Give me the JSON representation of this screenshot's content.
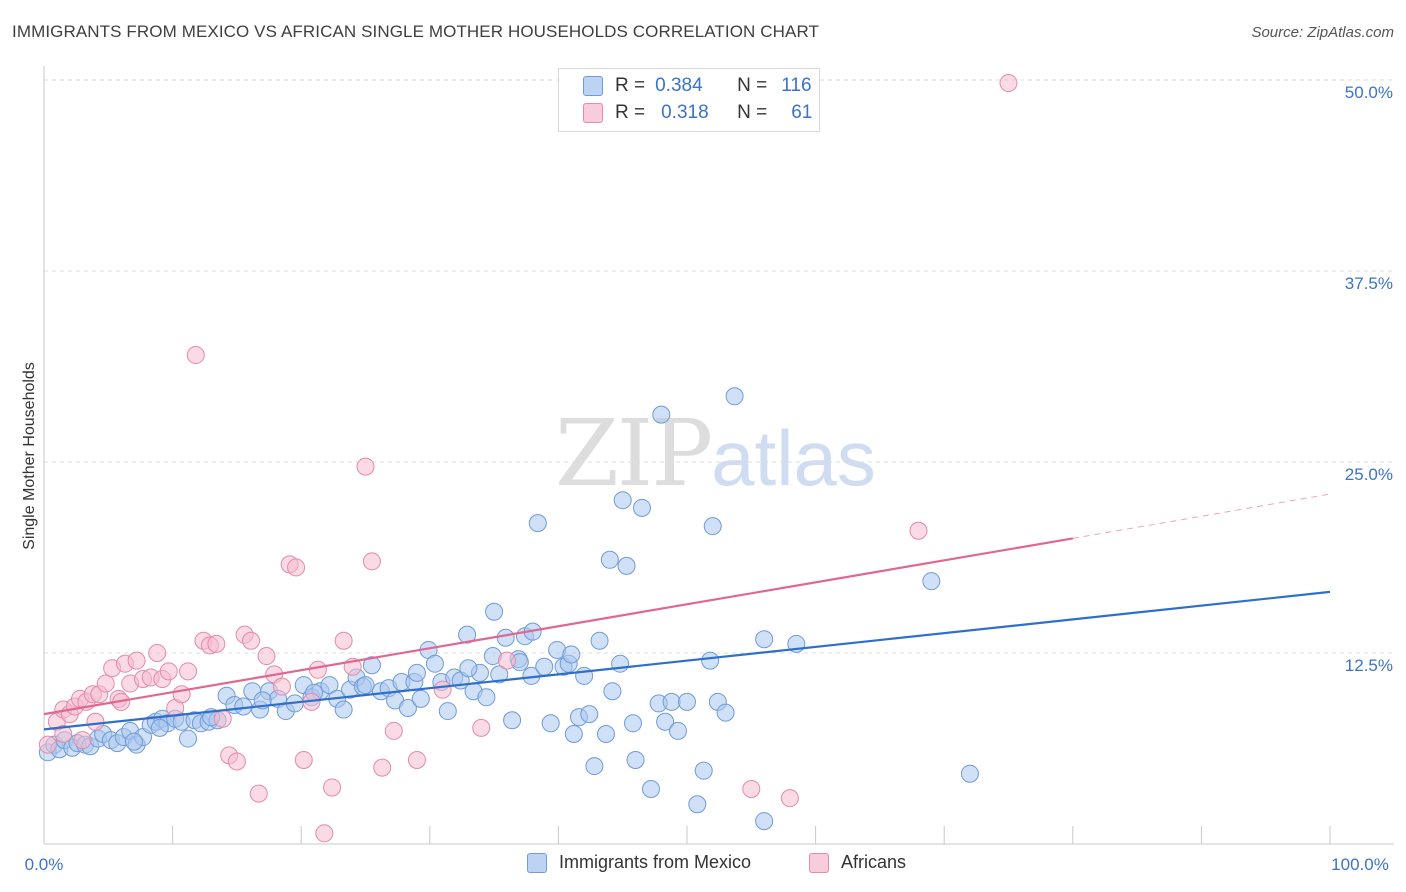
{
  "title": "IMMIGRANTS FROM MEXICO VS AFRICAN SINGLE MOTHER HOUSEHOLDS CORRELATION CHART",
  "source": "Source: ZipAtlas.com",
  "watermark": {
    "zip": "ZIP",
    "atlas": "atlas"
  },
  "legend_top": {
    "rows": [
      {
        "r_label": "R =",
        "r_value": "0.384",
        "n_label": "N =",
        "n_value": "116"
      },
      {
        "r_label": "R =",
        "r_value": "0.318",
        "n_label": "N =",
        "n_value": "61"
      }
    ]
  },
  "legend_bottom": [
    "Immigrants from Mexico",
    "Africans"
  ],
  "colors": {
    "mexico_fill": "#a9c6ef",
    "mexico_stroke": "#6f9bd8",
    "mexico_line": "#2f6fcc",
    "africans_fill": "#f6bccd",
    "africans_stroke": "#e58aa8",
    "africans_line": "#e06790",
    "tick_label": "#3b73c8",
    "grid": "#dddddd"
  },
  "chart_data": {
    "type": "scatter",
    "title": "IMMIGRANTS FROM MEXICO VS AFRICAN SINGLE MOTHER HOUSEHOLDS CORRELATION CHART",
    "xlabel": "",
    "ylabel": "Single Mother Households",
    "xlim": [
      0,
      100
    ],
    "ylim": [
      0,
      50
    ],
    "x_tick_labels": [
      "0.0%",
      "100.0%"
    ],
    "y_ticks": [
      12.5,
      25.0,
      37.5,
      50.0
    ],
    "y_tick_labels": [
      "12.5%",
      "25.0%",
      "37.5%",
      "50.0%"
    ],
    "grid": true,
    "legend_position": "top-center",
    "series": [
      {
        "name": "Immigrants from Mexico",
        "R": 0.384,
        "N": 116,
        "trend": {
          "x": [
            0,
            100
          ],
          "y": [
            7.5,
            16.5
          ]
        },
        "points": [
          [
            0.3,
            6.0
          ],
          [
            0.8,
            6.5
          ],
          [
            1.2,
            6.2
          ],
          [
            1.6,
            6.8
          ],
          [
            2.2,
            6.3
          ],
          [
            2.6,
            6.6
          ],
          [
            3.2,
            6.5
          ],
          [
            3.6,
            6.4
          ],
          [
            4.2,
            6.9
          ],
          [
            4.6,
            7.2
          ],
          [
            5.2,
            6.8
          ],
          [
            5.7,
            6.6
          ],
          [
            6.2,
            7.0
          ],
          [
            6.7,
            7.4
          ],
          [
            7.2,
            6.5
          ],
          [
            7.7,
            7.0
          ],
          [
            8.3,
            7.8
          ],
          [
            8.7,
            8.0
          ],
          [
            9.2,
            8.2
          ],
          [
            9.6,
            7.9
          ],
          [
            10.2,
            8.2
          ],
          [
            10.7,
            8.0
          ],
          [
            11.2,
            6.9
          ],
          [
            11.7,
            8.1
          ],
          [
            12.2,
            7.9
          ],
          [
            12.8,
            8.0
          ],
          [
            13.5,
            8.1
          ],
          [
            14.2,
            9.7
          ],
          [
            14.8,
            9.1
          ],
          [
            15.5,
            9.0
          ],
          [
            16.2,
            10.0
          ],
          [
            16.8,
            8.8
          ],
          [
            17.5,
            10.0
          ],
          [
            18.2,
            9.5
          ],
          [
            18.8,
            8.7
          ],
          [
            19.5,
            9.2
          ],
          [
            20.2,
            10.4
          ],
          [
            20.8,
            9.6
          ],
          [
            21.5,
            10.0
          ],
          [
            22.2,
            10.4
          ],
          [
            22.8,
            9.5
          ],
          [
            23.3,
            8.8
          ],
          [
            23.8,
            10.1
          ],
          [
            24.3,
            10.9
          ],
          [
            24.8,
            10.3
          ],
          [
            25.5,
            11.7
          ],
          [
            26.2,
            10.0
          ],
          [
            26.8,
            10.2
          ],
          [
            27.3,
            9.4
          ],
          [
            27.8,
            10.6
          ],
          [
            28.3,
            8.9
          ],
          [
            28.8,
            10.6
          ],
          [
            29.3,
            9.5
          ],
          [
            29.9,
            12.7
          ],
          [
            30.4,
            11.8
          ],
          [
            30.9,
            10.6
          ],
          [
            31.4,
            8.7
          ],
          [
            31.9,
            10.9
          ],
          [
            32.4,
            10.7
          ],
          [
            32.9,
            13.7
          ],
          [
            33.4,
            10.0
          ],
          [
            33.9,
            11.2
          ],
          [
            34.4,
            9.6
          ],
          [
            34.9,
            12.3
          ],
          [
            35.4,
            11.1
          ],
          [
            35.9,
            13.5
          ],
          [
            36.4,
            8.1
          ],
          [
            36.9,
            12.1
          ],
          [
            37.4,
            13.6
          ],
          [
            37.9,
            11.0
          ],
          [
            38.4,
            21.0
          ],
          [
            38.9,
            11.6
          ],
          [
            39.4,
            7.9
          ],
          [
            39.9,
            12.7
          ],
          [
            40.4,
            11.6
          ],
          [
            40.8,
            11.8
          ],
          [
            41.2,
            7.2
          ],
          [
            41.6,
            8.3
          ],
          [
            42.0,
            11.0
          ],
          [
            42.4,
            8.5
          ],
          [
            42.8,
            5.1
          ],
          [
            43.2,
            13.3
          ],
          [
            43.7,
            7.2
          ],
          [
            44.2,
            10.0
          ],
          [
            44.8,
            11.8
          ],
          [
            45.3,
            18.2
          ],
          [
            45.8,
            7.9
          ],
          [
            46.5,
            22.0
          ],
          [
            47.2,
            3.6
          ],
          [
            47.8,
            9.2
          ],
          [
            48.3,
            8.0
          ],
          [
            48.8,
            9.3
          ],
          [
            49.3,
            7.4
          ],
          [
            50.8,
            2.6
          ],
          [
            51.3,
            4.8
          ],
          [
            51.8,
            12.0
          ],
          [
            52.4,
            9.3
          ],
          [
            53.0,
            8.6
          ],
          [
            53.7,
            29.3
          ],
          [
            35.0,
            15.2
          ],
          [
            38.0,
            13.9
          ],
          [
            44.0,
            18.6
          ],
          [
            45.0,
            22.5
          ],
          [
            48.0,
            28.1
          ],
          [
            52.0,
            20.8
          ],
          [
            56.0,
            13.4
          ],
          [
            58.5,
            13.1
          ],
          [
            69.0,
            17.2
          ],
          [
            72.0,
            4.6
          ],
          [
            56.0,
            1.5
          ],
          [
            7.0,
            6.7
          ],
          [
            9.0,
            7.6
          ],
          [
            13.0,
            8.3
          ],
          [
            17.0,
            9.4
          ],
          [
            21.0,
            9.9
          ],
          [
            25.0,
            10.4
          ],
          [
            29.0,
            11.2
          ],
          [
            33.0,
            11.5
          ],
          [
            37.0,
            11.9
          ],
          [
            41.0,
            12.4
          ],
          [
            50.0,
            9.3
          ],
          [
            46.0,
            5.5
          ]
        ]
      },
      {
        "name": "Africans",
        "R": 0.318,
        "N": 61,
        "trend": {
          "x": [
            0,
            80
          ],
          "y": [
            8.5,
            20.0
          ]
        },
        "trend_dashed": {
          "x": [
            80,
            100
          ],
          "y": [
            20.0,
            22.9
          ]
        },
        "points": [
          [
            0.3,
            6.5
          ],
          [
            1.0,
            8.0
          ],
          [
            1.5,
            8.8
          ],
          [
            2.0,
            8.5
          ],
          [
            2.4,
            9.0
          ],
          [
            2.8,
            9.5
          ],
          [
            3.3,
            9.3
          ],
          [
            3.8,
            9.8
          ],
          [
            4.3,
            9.8
          ],
          [
            4.8,
            10.5
          ],
          [
            5.3,
            11.5
          ],
          [
            5.8,
            9.5
          ],
          [
            6.3,
            11.8
          ],
          [
            6.7,
            10.5
          ],
          [
            7.2,
            12.0
          ],
          [
            7.7,
            10.8
          ],
          [
            8.3,
            10.9
          ],
          [
            8.8,
            12.5
          ],
          [
            9.2,
            10.8
          ],
          [
            9.7,
            11.3
          ],
          [
            10.2,
            8.9
          ],
          [
            10.7,
            9.8
          ],
          [
            11.2,
            11.3
          ],
          [
            11.8,
            32.0
          ],
          [
            12.4,
            13.3
          ],
          [
            12.9,
            13.0
          ],
          [
            13.4,
            13.1
          ],
          [
            13.9,
            8.2
          ],
          [
            14.4,
            5.8
          ],
          [
            15.0,
            5.4
          ],
          [
            15.6,
            13.7
          ],
          [
            16.1,
            13.3
          ],
          [
            16.7,
            3.3
          ],
          [
            17.3,
            12.3
          ],
          [
            17.9,
            11.1
          ],
          [
            18.5,
            10.3
          ],
          [
            19.1,
            18.3
          ],
          [
            19.6,
            18.1
          ],
          [
            20.2,
            5.5
          ],
          [
            20.8,
            9.3
          ],
          [
            21.3,
            11.4
          ],
          [
            21.8,
            0.7
          ],
          [
            22.4,
            3.7
          ],
          [
            23.3,
            13.3
          ],
          [
            24.0,
            11.6
          ],
          [
            25.0,
            24.7
          ],
          [
            25.5,
            18.5
          ],
          [
            26.3,
            5.0
          ],
          [
            27.2,
            7.4
          ],
          [
            29.0,
            5.5
          ],
          [
            31.0,
            10.1
          ],
          [
            34.0,
            7.6
          ],
          [
            36.0,
            12.0
          ],
          [
            55.0,
            3.6
          ],
          [
            58.0,
            3.0
          ],
          [
            68.0,
            20.5
          ],
          [
            75.0,
            49.8
          ],
          [
            1.5,
            7.2
          ],
          [
            3.0,
            6.8
          ],
          [
            4.0,
            8.0
          ],
          [
            6.0,
            9.3
          ]
        ]
      }
    ]
  }
}
